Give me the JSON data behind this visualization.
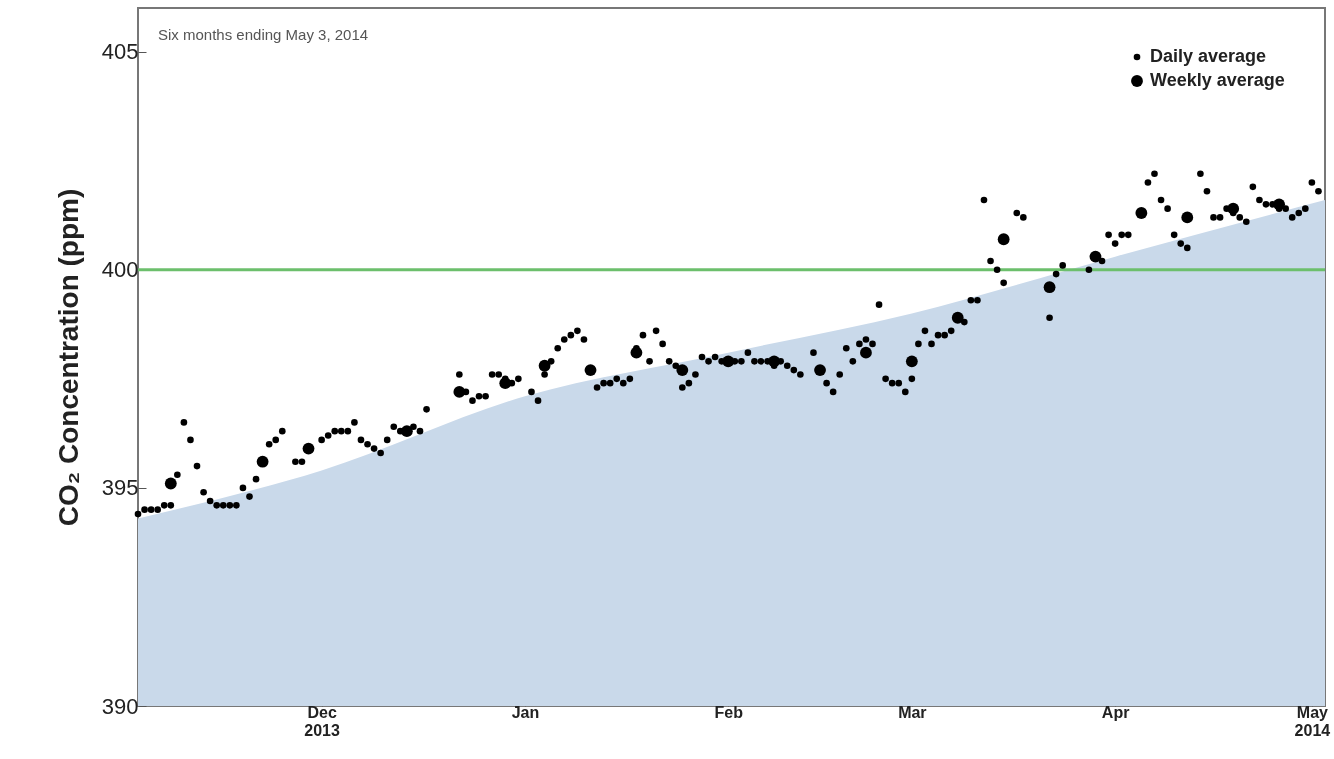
{
  "chart_data": {
    "type": "scatter",
    "ylabel": "CO₂ Concentration (ppm)",
    "annotations": [
      "Six months ending May 3, 2014"
    ],
    "xlim": [
      "2013-11-03",
      "2014-05-03"
    ],
    "xticks": [
      {
        "value": "2013-12-01",
        "label": "Dec 2013"
      },
      {
        "value": "2014-01-01",
        "label": "Jan"
      },
      {
        "value": "2014-02-01",
        "label": "Feb"
      },
      {
        "value": "2014-03-01",
        "label": "Mar"
      },
      {
        "value": "2014-04-01",
        "label": "Apr"
      },
      {
        "value": "2014-05-01",
        "label": "May 2014"
      }
    ],
    "ylim": [
      390,
      406
    ],
    "yticks": [
      390,
      395,
      400,
      405
    ],
    "grid": false,
    "legend": "top right",
    "ref_lines": [
      {
        "axis": "y",
        "value": 400,
        "color": "#6cbf6c"
      }
    ],
    "series": [
      {
        "type": "area",
        "color": "#c9d9ea",
        "x": [
          "2013-11-03",
          "2013-12-01",
          "2014-01-01",
          "2014-02-01",
          "2014-03-01",
          "2014-04-01",
          "2014-05-03"
        ],
        "values": [
          394.3,
          395.4,
          397.1,
          398.1,
          399.0,
          400.3,
          401.6
        ]
      },
      {
        "name": "Daily average",
        "color": "#000000",
        "marker": "circle",
        "x": [
          "2013-11-03",
          "2013-11-04",
          "2013-11-05",
          "2013-11-06",
          "2013-11-07",
          "2013-11-08",
          "2013-11-09",
          "2013-11-10",
          "2013-11-11",
          "2013-11-12",
          "2013-11-13",
          "2013-11-14",
          "2013-11-15",
          "2013-11-16",
          "2013-11-17",
          "2013-11-18",
          "2013-11-19",
          "2013-11-20",
          "2013-11-21",
          "2013-11-23",
          "2013-11-24",
          "2013-11-25",
          "2013-11-27",
          "2013-11-28",
          "2013-12-01",
          "2013-12-02",
          "2013-12-03",
          "2013-12-04",
          "2013-12-05",
          "2013-12-06",
          "2013-12-07",
          "2013-12-08",
          "2013-12-09",
          "2013-12-10",
          "2013-12-11",
          "2013-12-12",
          "2013-12-13",
          "2013-12-15",
          "2013-12-16",
          "2013-12-17",
          "2013-12-22",
          "2013-12-23",
          "2013-12-24",
          "2013-12-25",
          "2013-12-26",
          "2013-12-27",
          "2013-12-28",
          "2013-12-29",
          "2013-12-30",
          "2013-12-31",
          "2014-01-02",
          "2014-01-03",
          "2014-01-04",
          "2014-01-05",
          "2014-01-06",
          "2014-01-07",
          "2014-01-08",
          "2014-01-09",
          "2014-01-10",
          "2014-01-12",
          "2014-01-13",
          "2014-01-14",
          "2014-01-15",
          "2014-01-16",
          "2014-01-17",
          "2014-01-18",
          "2014-01-19",
          "2014-01-20",
          "2014-01-21",
          "2014-01-22",
          "2014-01-23",
          "2014-01-24",
          "2014-01-25",
          "2014-01-26",
          "2014-01-27",
          "2014-01-28",
          "2014-01-29",
          "2014-01-30",
          "2014-01-31",
          "2014-02-02",
          "2014-02-03",
          "2014-02-04",
          "2014-02-05",
          "2014-02-06",
          "2014-02-07",
          "2014-02-08",
          "2014-02-09",
          "2014-02-10",
          "2014-02-11",
          "2014-02-12",
          "2014-02-14",
          "2014-02-16",
          "2014-02-17",
          "2014-02-18",
          "2014-02-19",
          "2014-02-20",
          "2014-02-21",
          "2014-02-22",
          "2014-02-23",
          "2014-02-24",
          "2014-02-25",
          "2014-02-26",
          "2014-02-27",
          "2014-02-28",
          "2014-03-01",
          "2014-03-02",
          "2014-03-03",
          "2014-03-04",
          "2014-03-05",
          "2014-03-06",
          "2014-03-07",
          "2014-03-09",
          "2014-03-10",
          "2014-03-11",
          "2014-03-12",
          "2014-03-13",
          "2014-03-14",
          "2014-03-15",
          "2014-03-17",
          "2014-03-18",
          "2014-03-22",
          "2014-03-23",
          "2014-03-24",
          "2014-03-28",
          "2014-03-30",
          "2014-03-31",
          "2014-04-01",
          "2014-04-02",
          "2014-04-03",
          "2014-04-06",
          "2014-04-07",
          "2014-04-08",
          "2014-04-09",
          "2014-04-10",
          "2014-04-11",
          "2014-04-12",
          "2014-04-14",
          "2014-04-15",
          "2014-04-16",
          "2014-04-17",
          "2014-04-18",
          "2014-04-19",
          "2014-04-20",
          "2014-04-21",
          "2014-04-22",
          "2014-04-23",
          "2014-04-24",
          "2014-04-25",
          "2014-04-26",
          "2014-04-27",
          "2014-04-28",
          "2014-04-29",
          "2014-04-30",
          "2014-05-01",
          "2014-05-02"
        ],
        "values": [
          394.4,
          394.5,
          394.5,
          394.5,
          394.6,
          394.6,
          395.3,
          396.5,
          396.1,
          395.5,
          394.9,
          394.7,
          394.6,
          394.6,
          394.6,
          394.6,
          395.0,
          394.8,
          395.2,
          396.0,
          396.1,
          396.3,
          395.6,
          395.6,
          396.1,
          396.2,
          396.3,
          396.3,
          396.3,
          396.5,
          396.1,
          396.0,
          395.9,
          395.8,
          396.1,
          396.4,
          396.3,
          396.4,
          396.3,
          396.8,
          397.6,
          397.2,
          397.0,
          397.1,
          397.1,
          397.6,
          397.6,
          397.5,
          397.4,
          397.5,
          397.2,
          397.0,
          397.6,
          397.9,
          398.2,
          398.4,
          398.5,
          398.6,
          398.4,
          397.3,
          397.4,
          397.4,
          397.5,
          397.4,
          397.5,
          398.2,
          398.5,
          397.9,
          398.6,
          398.3,
          397.9,
          397.8,
          397.3,
          397.4,
          397.6,
          398.0,
          397.9,
          398.0,
          397.9,
          397.9,
          397.9,
          398.1,
          397.9,
          397.9,
          397.9,
          397.8,
          397.9,
          397.8,
          397.7,
          397.6,
          398.1,
          397.4,
          397.2,
          397.6,
          398.2,
          397.9,
          398.3,
          398.4,
          398.3,
          399.2,
          397.5,
          397.4,
          397.4,
          397.2,
          397.5,
          398.3,
          398.6,
          398.3,
          398.5,
          398.5,
          398.6,
          398.8,
          399.3,
          399.3,
          401.6,
          400.2,
          400.0,
          399.7,
          401.3,
          401.2,
          398.9,
          399.9,
          400.1,
          400.0,
          400.2,
          400.8,
          400.6,
          400.8,
          400.8,
          402.0,
          402.2,
          401.6,
          401.4,
          400.8,
          400.6,
          400.5,
          402.2,
          401.8,
          401.2,
          401.2,
          401.4,
          401.3,
          401.2,
          401.1,
          401.9,
          401.6,
          401.5,
          401.5,
          401.4,
          401.4,
          401.2,
          401.3,
          401.4,
          402.0,
          401.8
        ]
      },
      {
        "name": "Weekly average",
        "color": "#000000",
        "marker": "circle",
        "x": [
          "2013-11-08",
          "2013-11-22",
          "2013-11-29",
          "2013-12-14",
          "2013-12-22",
          "2013-12-29",
          "2014-01-04",
          "2014-01-11",
          "2014-01-18",
          "2014-01-25",
          "2014-02-01",
          "2014-02-08",
          "2014-02-15",
          "2014-02-22",
          "2014-03-01",
          "2014-03-08",
          "2014-03-15",
          "2014-03-22",
          "2014-03-29",
          "2014-04-05",
          "2014-04-12",
          "2014-04-19",
          "2014-04-26"
        ],
        "values": [
          395.1,
          395.6,
          395.9,
          396.3,
          397.2,
          397.4,
          397.8,
          397.7,
          398.1,
          397.7,
          397.9,
          397.9,
          397.7,
          398.1,
          397.9,
          398.9,
          400.7,
          399.6,
          400.3,
          401.3,
          401.2,
          401.4,
          401.5
        ]
      }
    ]
  }
}
